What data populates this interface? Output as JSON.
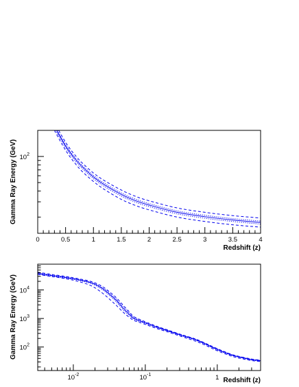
{
  "chart_data": [
    {
      "type": "line",
      "xlabel": "Redshift (z)",
      "ylabel": "Gamma Ray Energy (GeV)",
      "xscale": "linear",
      "yscale": "log",
      "xlim": [
        0,
        4
      ],
      "ylim": [
        13,
        200
      ],
      "x_ticks": [
        "0",
        "0.5",
        "1",
        "1.5",
        "2",
        "2.5",
        "3",
        "3.5",
        "4"
      ],
      "x_tick_values": [
        0,
        0.5,
        1,
        1.5,
        2,
        2.5,
        3,
        3.5,
        4
      ],
      "y_ticks": [
        {
          "base": "10",
          "exp": "2",
          "value": 100
        }
      ],
      "grid": false,
      "line_color": "#0000ee",
      "series": [
        {
          "style": "solid",
          "x": [
            0.34,
            0.4,
            0.5,
            0.6,
            0.7,
            0.8,
            1.0,
            1.2,
            1.5,
            1.75,
            2.0,
            2.5,
            3.0,
            3.5,
            4.0
          ],
          "values": [
            200,
            170,
            132,
            107,
            89,
            76,
            58,
            47,
            36.5,
            31,
            27.5,
            22.7,
            20.2,
            18.5,
            17.3
          ]
        },
        {
          "style": "dotted",
          "x": [
            0.36,
            0.4,
            0.5,
            0.6,
            0.7,
            0.8,
            1.0,
            1.2,
            1.5,
            1.75,
            2.0,
            2.5,
            3.0,
            3.5,
            4.0
          ],
          "values": [
            200,
            177,
            138,
            111,
            93,
            79,
            60.5,
            49,
            38,
            32.3,
            28.6,
            23.6,
            21,
            19.2,
            18
          ]
        },
        {
          "style": "dotted",
          "x": [
            0.32,
            0.4,
            0.5,
            0.6,
            0.7,
            0.8,
            1.0,
            1.2,
            1.5,
            1.75,
            2.0,
            2.5,
            3.0,
            3.5,
            4.0
          ],
          "values": [
            200,
            163,
            126,
            102,
            85,
            72.5,
            55.5,
            45,
            35,
            29.8,
            26.4,
            21.8,
            19.4,
            17.8,
            16.6
          ]
        },
        {
          "style": "dashed",
          "x": [
            0.38,
            0.4,
            0.5,
            0.6,
            0.7,
            0.8,
            1.0,
            1.2,
            1.5,
            1.75,
            2.0,
            2.5,
            3.0,
            3.5,
            4.0
          ],
          "values": [
            200,
            188,
            146,
            118,
            98.5,
            84,
            64.5,
            52.5,
            41,
            34.8,
            30.8,
            25.5,
            22.7,
            20.8,
            19.5
          ]
        },
        {
          "style": "dashed",
          "x": [
            0.3,
            0.4,
            0.5,
            0.6,
            0.7,
            0.8,
            1.0,
            1.2,
            1.5,
            1.75,
            2.0,
            2.5,
            3.0,
            3.5,
            4.0
          ],
          "values": [
            200,
            152,
            118,
            95,
            79,
            67,
            51.5,
            41.5,
            32,
            27.3,
            24.2,
            20,
            17.8,
            16.3,
            15.3
          ]
        }
      ]
    },
    {
      "type": "line",
      "xlabel": "Redshift (z)",
      "ylabel": "Gamma Ray Energy (GeV)",
      "xscale": "log",
      "yscale": "log",
      "xlim": [
        0.0032,
        4
      ],
      "ylim": [
        15,
        80000
      ],
      "x_ticks": [
        {
          "base": "10",
          "exp": "-2",
          "value": 0.01
        },
        {
          "base": "10",
          "exp": "-1",
          "value": 0.1
        },
        {
          "text": "1",
          "value": 1
        }
      ],
      "y_ticks": [
        {
          "base": "10",
          "exp": "2",
          "value": 100
        },
        {
          "base": "10",
          "exp": "3",
          "value": 1000
        },
        {
          "base": "10",
          "exp": "4",
          "value": 10000
        }
      ],
      "grid": false,
      "line_color": "#0000ee",
      "series": [
        {
          "style": "solid",
          "x": [
            0.0032,
            0.005,
            0.008,
            0.012,
            0.018,
            0.025,
            0.032,
            0.04,
            0.05,
            0.06,
            0.07,
            0.1,
            0.15,
            0.2,
            0.3,
            0.5,
            0.7,
            1.0,
            1.5,
            2.0,
            3.0,
            4.0
          ],
          "values": [
            38000,
            32000,
            27000,
            22500,
            17500,
            11500,
            7000,
            4200,
            2200,
            1400,
            1000,
            700,
            480,
            380,
            270,
            180,
            125,
            82,
            55,
            45,
            36,
            33
          ]
        },
        {
          "style": "dotted",
          "x": [
            0.0032,
            0.005,
            0.008,
            0.012,
            0.018,
            0.025,
            0.032,
            0.04,
            0.05,
            0.06,
            0.07,
            0.1,
            0.15,
            0.2,
            0.3,
            0.5,
            0.7,
            1.0,
            1.5,
            2.0,
            3.0,
            4.0
          ],
          "values": [
            40000,
            33500,
            28200,
            23500,
            18500,
            12500,
            7700,
            4600,
            2500,
            1550,
            1080,
            740,
            500,
            395,
            280,
            188,
            130,
            86,
            57,
            46.5,
            37.5,
            34
          ]
        },
        {
          "style": "dotted",
          "x": [
            0.0032,
            0.005,
            0.008,
            0.012,
            0.018,
            0.025,
            0.032,
            0.04,
            0.05,
            0.06,
            0.07,
            0.1,
            0.15,
            0.2,
            0.3,
            0.5,
            0.7,
            1.0,
            1.5,
            2.0,
            3.0,
            4.0
          ],
          "values": [
            36000,
            30500,
            25800,
            21500,
            16500,
            10500,
            6300,
            3700,
            1950,
            1270,
            930,
            670,
            460,
            365,
            260,
            172,
            120,
            79,
            53,
            43.5,
            35,
            32
          ]
        },
        {
          "style": "dashed",
          "x": [
            0.0032,
            0.005,
            0.008,
            0.012,
            0.018,
            0.025,
            0.032,
            0.04,
            0.05,
            0.06,
            0.07,
            0.1,
            0.15,
            0.2,
            0.3,
            0.5,
            0.7,
            1.0,
            1.5,
            2.0,
            3.0,
            4.0
          ],
          "values": [
            42000,
            35000,
            29500,
            24500,
            19500,
            13500,
            8500,
            5200,
            2800,
            1700,
            1150,
            770,
            515,
            405,
            285,
            190,
            132,
            88,
            58,
            47,
            38,
            34.5
          ]
        },
        {
          "style": "dashed",
          "x": [
            0.0032,
            0.005,
            0.008,
            0.012,
            0.018,
            0.025,
            0.032,
            0.04,
            0.05,
            0.06,
            0.07,
            0.1,
            0.15,
            0.2,
            0.3,
            0.5,
            0.7,
            1.0,
            1.5,
            2.0,
            3.0,
            4.0
          ],
          "values": [
            35000,
            29500,
            24500,
            19500,
            13800,
            8000,
            4700,
            2800,
            1600,
            1100,
            850,
            620,
            430,
            345,
            245,
            160,
            112,
            74,
            50,
            41,
            33.5,
            31
          ]
        }
      ]
    }
  ]
}
